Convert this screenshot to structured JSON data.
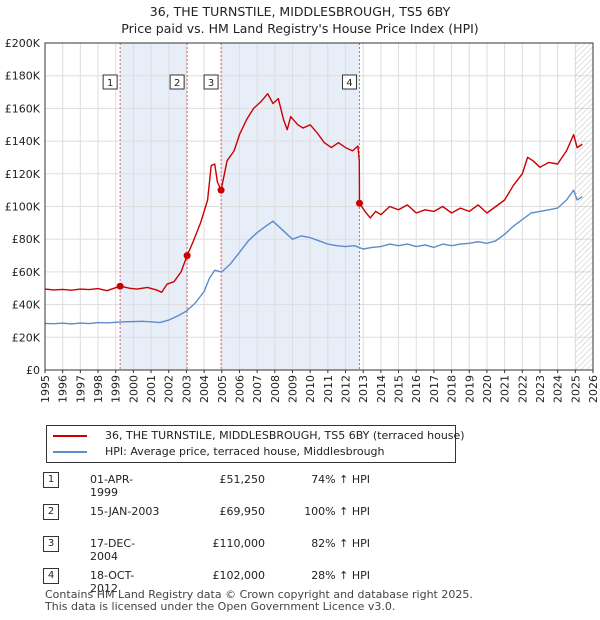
{
  "title_line1": "36, THE TURNSTILE, MIDDLESBROUGH, TS5 6BY",
  "title_line2": "Price paid vs. HM Land Registry's House Price Index (HPI)",
  "chart_data": {
    "type": "line",
    "title": "36, THE TURNSTILE, MIDDLESBROUGH, TS5 6BY — Price paid vs. HM Land Registry's House Price Index (HPI)",
    "xlim": [
      1995,
      2026
    ],
    "ylim": [
      0,
      200000
    ],
    "x_ticks": [
      "1995",
      "1996",
      "1997",
      "1998",
      "1999",
      "2000",
      "2001",
      "2002",
      "2003",
      "2004",
      "2005",
      "2006",
      "2007",
      "2008",
      "2009",
      "2010",
      "2011",
      "2012",
      "2013",
      "2014",
      "2015",
      "2016",
      "2017",
      "2018",
      "2019",
      "2020",
      "2021",
      "2022",
      "2023",
      "2024",
      "2025",
      "2026"
    ],
    "y_ticks": [
      {
        "value": 0,
        "label": "£0"
      },
      {
        "value": 20000,
        "label": "£20K"
      },
      {
        "value": 40000,
        "label": "£40K"
      },
      {
        "value": 60000,
        "label": "£60K"
      },
      {
        "value": 80000,
        "label": "£80K"
      },
      {
        "value": 100000,
        "label": "£100K"
      },
      {
        "value": 120000,
        "label": "£120K"
      },
      {
        "value": 140000,
        "label": "£140K"
      },
      {
        "value": 160000,
        "label": "£160K"
      },
      {
        "value": 180000,
        "label": "£180K"
      },
      {
        "value": 200000,
        "label": "£200K"
      }
    ],
    "grid": true,
    "colors": {
      "property": "#cc0000",
      "hpi": "#5b8ccc",
      "shade": "#e8eef8",
      "grid": "#dddddd",
      "marker_line": "#e06070",
      "future_hatch": "#999999"
    },
    "series": [
      {
        "name": "36, THE TURNSTILE, MIDDLESBROUGH, TS5 6BY (terraced house)",
        "color": "#cc0000",
        "points": [
          [
            1995.0,
            49500
          ],
          [
            1995.5,
            49000
          ],
          [
            1996.0,
            49300
          ],
          [
            1996.5,
            48800
          ],
          [
            1997.0,
            49500
          ],
          [
            1997.5,
            49200
          ],
          [
            1998.0,
            49800
          ],
          [
            1998.5,
            48500
          ],
          [
            1999.25,
            51250
          ],
          [
            1999.8,
            50000
          ],
          [
            2000.2,
            49500
          ],
          [
            2000.8,
            50500
          ],
          [
            2001.3,
            49000
          ],
          [
            2001.6,
            47500
          ],
          [
            2001.9,
            52500
          ],
          [
            2002.3,
            54000
          ],
          [
            2002.7,
            60000
          ],
          [
            2003.04,
            69950
          ],
          [
            2003.4,
            79000
          ],
          [
            2003.8,
            90000
          ],
          [
            2004.2,
            104000
          ],
          [
            2004.4,
            125000
          ],
          [
            2004.6,
            126000
          ],
          [
            2004.75,
            115000
          ],
          [
            2004.96,
            110000
          ],
          [
            2005.3,
            128000
          ],
          [
            2005.7,
            134000
          ],
          [
            2006.0,
            144000
          ],
          [
            2006.4,
            153000
          ],
          [
            2006.8,
            160000
          ],
          [
            2007.2,
            164000
          ],
          [
            2007.6,
            169000
          ],
          [
            2007.9,
            163000
          ],
          [
            2008.2,
            166000
          ],
          [
            2008.5,
            153000
          ],
          [
            2008.7,
            147000
          ],
          [
            2008.9,
            155000
          ],
          [
            2009.3,
            150000
          ],
          [
            2009.6,
            148000
          ],
          [
            2010.0,
            150000
          ],
          [
            2010.4,
            145000
          ],
          [
            2010.8,
            139000
          ],
          [
            2011.2,
            136000
          ],
          [
            2011.6,
            139000
          ],
          [
            2012.0,
            136000
          ],
          [
            2012.4,
            134000
          ],
          [
            2012.7,
            137000
          ],
          [
            2012.78,
            128000
          ],
          [
            2012.79,
            102000
          ],
          [
            2013.1,
            97000
          ],
          [
            2013.4,
            93000
          ],
          [
            2013.7,
            97000
          ],
          [
            2014.0,
            95000
          ],
          [
            2014.5,
            100000
          ],
          [
            2015.0,
            98000
          ],
          [
            2015.5,
            101000
          ],
          [
            2016.0,
            96000
          ],
          [
            2016.5,
            98000
          ],
          [
            2017.0,
            97000
          ],
          [
            2017.5,
            100000
          ],
          [
            2018.0,
            96000
          ],
          [
            2018.5,
            99000
          ],
          [
            2019.0,
            97000
          ],
          [
            2019.5,
            101000
          ],
          [
            2020.0,
            96000
          ],
          [
            2020.5,
            100000
          ],
          [
            2021.0,
            104000
          ],
          [
            2021.5,
            113000
          ],
          [
            2022.0,
            120000
          ],
          [
            2022.3,
            130000
          ],
          [
            2022.6,
            128000
          ],
          [
            2023.0,
            124000
          ],
          [
            2023.5,
            127000
          ],
          [
            2024.0,
            126000
          ],
          [
            2024.5,
            134000
          ],
          [
            2024.9,
            144000
          ],
          [
            2025.1,
            136000
          ],
          [
            2025.4,
            138000
          ]
        ]
      },
      {
        "name": "HPI: Average price, terraced house, Middlesbrough",
        "color": "#5b8ccc",
        "points": [
          [
            1995.0,
            28500
          ],
          [
            1995.5,
            28300
          ],
          [
            1996.0,
            28600
          ],
          [
            1996.5,
            28200
          ],
          [
            1997.0,
            28700
          ],
          [
            1997.5,
            28400
          ],
          [
            1998.0,
            29000
          ],
          [
            1998.5,
            28800
          ],
          [
            1999.0,
            29200
          ],
          [
            1999.5,
            29500
          ],
          [
            2000.0,
            29600
          ],
          [
            2000.5,
            29800
          ],
          [
            2001.0,
            29500
          ],
          [
            2001.5,
            29000
          ],
          [
            2002.0,
            30500
          ],
          [
            2002.5,
            33000
          ],
          [
            2003.0,
            36000
          ],
          [
            2003.5,
            41000
          ],
          [
            2004.0,
            48000
          ],
          [
            2004.3,
            56000
          ],
          [
            2004.6,
            61000
          ],
          [
            2005.0,
            60000
          ],
          [
            2005.5,
            65000
          ],
          [
            2006.0,
            72000
          ],
          [
            2006.5,
            79000
          ],
          [
            2007.0,
            84000
          ],
          [
            2007.5,
            88000
          ],
          [
            2007.9,
            91000
          ],
          [
            2008.3,
            87000
          ],
          [
            2008.7,
            83000
          ],
          [
            2009.0,
            80000
          ],
          [
            2009.5,
            82000
          ],
          [
            2010.0,
            81000
          ],
          [
            2010.5,
            79000
          ],
          [
            2011.0,
            77000
          ],
          [
            2011.5,
            76000
          ],
          [
            2012.0,
            75500
          ],
          [
            2012.5,
            76000
          ],
          [
            2013.0,
            74000
          ],
          [
            2013.5,
            75000
          ],
          [
            2014.0,
            75500
          ],
          [
            2014.5,
            77000
          ],
          [
            2015.0,
            76000
          ],
          [
            2015.5,
            77000
          ],
          [
            2016.0,
            75500
          ],
          [
            2016.5,
            76500
          ],
          [
            2017.0,
            75000
          ],
          [
            2017.5,
            77000
          ],
          [
            2018.0,
            76000
          ],
          [
            2018.5,
            77000
          ],
          [
            2019.0,
            77500
          ],
          [
            2019.5,
            78500
          ],
          [
            2020.0,
            77500
          ],
          [
            2020.5,
            79000
          ],
          [
            2021.0,
            83000
          ],
          [
            2021.5,
            88000
          ],
          [
            2022.0,
            92000
          ],
          [
            2022.5,
            96000
          ],
          [
            2023.0,
            97000
          ],
          [
            2023.5,
            98000
          ],
          [
            2024.0,
            99000
          ],
          [
            2024.5,
            104000
          ],
          [
            2024.9,
            110000
          ],
          [
            2025.1,
            104000
          ],
          [
            2025.4,
            106000
          ]
        ]
      }
    ],
    "annotations": [
      {
        "label": "1",
        "x": 1999.25,
        "value": 51250
      },
      {
        "label": "2",
        "x": 2003.04,
        "value": 69950
      },
      {
        "label": "3",
        "x": 2004.96,
        "value": 110000
      },
      {
        "label": "4",
        "x": 2012.79,
        "value": 102000
      }
    ],
    "shaded_ranges": [
      [
        1999.25,
        2003.04
      ],
      [
        2004.96,
        2012.79
      ]
    ],
    "future_start": 2025.0,
    "legend_position": "bottom"
  },
  "legend": {
    "property": "36, THE TURNSTILE, MIDDLESBROUGH, TS5 6BY (terraced house)",
    "hpi": "HPI: Average price, terraced house, Middlesbrough"
  },
  "transactions": [
    {
      "num": "1",
      "date": "01-APR-1999",
      "price": "£51,250",
      "hpi": "74% ↑ HPI"
    },
    {
      "num": "2",
      "date": "15-JAN-2003",
      "price": "£69,950",
      "hpi": "100% ↑ HPI"
    },
    {
      "num": "3",
      "date": "17-DEC-2004",
      "price": "£110,000",
      "hpi": "82% ↑ HPI"
    },
    {
      "num": "4",
      "date": "18-OCT-2012",
      "price": "£102,000",
      "hpi": "28% ↑ HPI"
    }
  ],
  "footer": {
    "line1": "Contains HM Land Registry data © Crown copyright and database right 2025.",
    "line2": "This data is licensed under the Open Government Licence v3.0."
  }
}
